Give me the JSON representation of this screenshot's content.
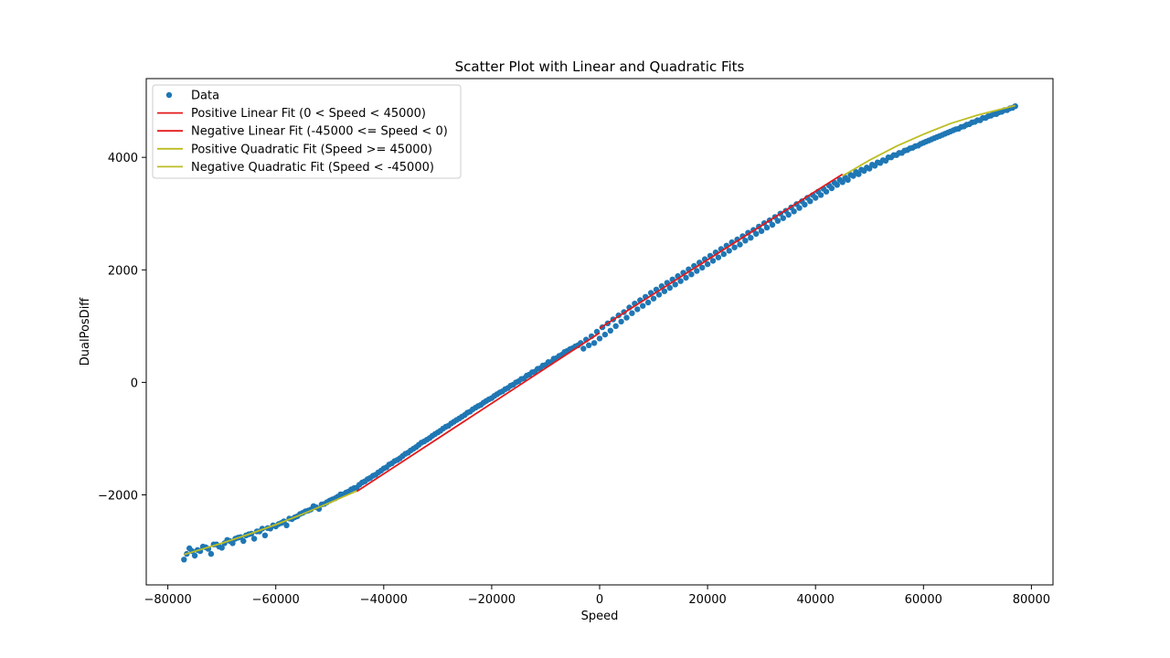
{
  "chart_data": {
    "type": "scatter",
    "title": "Scatter Plot with Linear and Quadratic Fits",
    "xlabel": "Speed",
    "ylabel": "DualPosDiff",
    "xlim": [
      -84000,
      84000
    ],
    "ylim": [
      -3600,
      5400
    ],
    "x_ticks": [
      -80000,
      -60000,
      -40000,
      -20000,
      0,
      20000,
      40000,
      60000,
      80000
    ],
    "x_tick_labels": [
      "−80000",
      "−60000",
      "−40000",
      "−20000",
      "0",
      "20000",
      "40000",
      "60000",
      "80000"
    ],
    "y_ticks": [
      -2000,
      0,
      2000,
      4000
    ],
    "y_tick_labels": [
      "−2000",
      "0",
      "2000",
      "4000"
    ],
    "grid": false,
    "legend_position": "top-left",
    "colors": {
      "data": "#1f77b4",
      "linear_fit": "#e41a1c",
      "quadratic_fit": "#bcbd22"
    },
    "series": [
      {
        "name": "Data",
        "kind": "scatter",
        "color": "#1f77b4",
        "x": [
          -77000,
          -76000,
          -75000,
          -74000,
          -73000,
          -72000,
          -71000,
          -70000,
          -69000,
          -68000,
          -67000,
          -66000,
          -65000,
          -64000,
          -63000,
          -62000,
          -61000,
          -60000,
          -59000,
          -58000,
          -57000,
          -56000,
          -55000,
          -54000,
          -53000,
          -52000,
          -51000,
          -50000,
          -49000,
          -48000,
          -47000,
          -46000,
          -45000,
          -44000,
          -43000,
          -42000,
          -41000,
          -40000,
          -39000,
          -38000,
          -37000,
          -36000,
          -35000,
          -34000,
          -33000,
          -32000,
          -31000,
          -30000,
          -29000,
          -28000,
          -27000,
          -26000,
          -25000,
          -24000,
          -23000,
          -22000,
          -21000,
          -20000,
          -19000,
          -18000,
          -17000,
          -16000,
          -15000,
          -14000,
          -13000,
          -12000,
          -11000,
          -10000,
          -9000,
          -8000,
          -7000,
          -6000,
          -5000,
          -4000,
          -3000,
          -2000,
          -1000,
          0,
          1000,
          2000,
          3000,
          4000,
          5000,
          6000,
          7000,
          8000,
          9000,
          10000,
          11000,
          12000,
          13000,
          14000,
          15000,
          16000,
          17000,
          18000,
          19000,
          20000,
          21000,
          22000,
          23000,
          24000,
          25000,
          26000,
          27000,
          28000,
          29000,
          30000,
          31000,
          32000,
          33000,
          34000,
          35000,
          36000,
          37000,
          38000,
          39000,
          40000,
          41000,
          42000,
          43000,
          44000,
          45000,
          46000,
          47000,
          48000,
          49000,
          50000,
          51000,
          52000,
          53000,
          54000,
          55000,
          56000,
          57000,
          58000,
          59000,
          60000,
          61000,
          62000,
          63000,
          64000,
          65000,
          66000,
          67000,
          68000,
          69000,
          70000,
          71000,
          72000,
          73000,
          74000,
          75000,
          76000,
          77000,
          -76500,
          -75500,
          -74500,
          -73500,
          -72500,
          -71500,
          -70500,
          -69500,
          -68500,
          -67500,
          -66500,
          -65500,
          -64500,
          -63500,
          -62500,
          -61500,
          -60500,
          -59500,
          -58500,
          -57500,
          -56500,
          -55500,
          -54500,
          -53500,
          -52500,
          -51500,
          -50500,
          -49500,
          -48500,
          -47500,
          -46500,
          -45500,
          -44500,
          -43500,
          -42500,
          -41500,
          -40500,
          -39500,
          -38500,
          -37500,
          -36500,
          -35500,
          -34500,
          -33500,
          -32500,
          -31500,
          -30500,
          -29500,
          -28500,
          -27500,
          -26500,
          -25500,
          -24500,
          -23500,
          -22500,
          -21500,
          -20500,
          -19500,
          -18500,
          -17500,
          -16500,
          -15500,
          -14500,
          -13500,
          -12500,
          -11500,
          -10500,
          -9500,
          -8500,
          -7500,
          -6500,
          -5500,
          -4500,
          -3500,
          -2500,
          -1500,
          -500,
          500,
          1500,
          2500,
          3500,
          4500,
          5500,
          6500,
          7500,
          8500,
          9500,
          10500,
          11500,
          12500,
          13500,
          14500,
          15500,
          16500,
          17500,
          18500,
          19500,
          20500,
          21500,
          22500,
          23500,
          24500,
          25500,
          26500,
          27500,
          28500,
          29500,
          30500,
          31500,
          32500,
          33500,
          34500,
          35500,
          36500,
          37500,
          38500,
          39500,
          40500,
          41500,
          42500,
          43500,
          44500,
          45500,
          46500,
          47500,
          48500,
          49500,
          50500,
          51500,
          52500,
          53500,
          54500,
          55500,
          56500,
          57500,
          58500,
          59500,
          60500,
          61500,
          62500,
          63500,
          64500,
          65500,
          66500,
          67500,
          68500,
          69500,
          70500,
          71500,
          72500,
          73500,
          74500,
          75500,
          76500
        ],
        "y": [
          -3150,
          -2950,
          -3080,
          -3000,
          -2930,
          -3050,
          -2880,
          -2940,
          -2800,
          -2860,
          -2760,
          -2820,
          -2700,
          -2780,
          -2650,
          -2720,
          -2600,
          -2560,
          -2500,
          -2540,
          -2430,
          -2380,
          -2320,
          -2280,
          -2200,
          -2250,
          -2160,
          -2100,
          -2060,
          -1990,
          -1960,
          -1900,
          -1870,
          -1780,
          -1720,
          -1660,
          -1600,
          -1530,
          -1460,
          -1400,
          -1350,
          -1270,
          -1210,
          -1150,
          -1070,
          -1020,
          -950,
          -890,
          -820,
          -770,
          -700,
          -640,
          -580,
          -520,
          -450,
          -400,
          -330,
          -280,
          -210,
          -160,
          -100,
          -40,
          20,
          70,
          140,
          190,
          250,
          310,
          360,
          430,
          490,
          560,
          610,
          660,
          600,
          660,
          700,
          780,
          850,
          920,
          1000,
          1080,
          1150,
          1230,
          1300,
          1360,
          1420,
          1490,
          1560,
          1620,
          1680,
          1740,
          1800,
          1860,
          1920,
          1980,
          2040,
          2100,
          2160,
          2220,
          2280,
          2340,
          2400,
          2450,
          2520,
          2570,
          2640,
          2690,
          2750,
          2800,
          2870,
          2920,
          2980,
          3040,
          3100,
          3160,
          3220,
          3280,
          3330,
          3390,
          3450,
          3510,
          3560,
          3600,
          3670,
          3700,
          3760,
          3800,
          3850,
          3900,
          3940,
          4000,
          4040,
          4080,
          4130,
          4170,
          4210,
          4260,
          4300,
          4340,
          4380,
          4420,
          4460,
          4500,
          4540,
          4580,
          4620,
          4660,
          4700,
          4730,
          4770,
          4800,
          4840,
          4870,
          4910,
          -3050,
          -3000,
          -2980,
          -2920,
          -2960,
          -2880,
          -2920,
          -2860,
          -2820,
          -2780,
          -2750,
          -2720,
          -2690,
          -2650,
          -2600,
          -2590,
          -2540,
          -2520,
          -2470,
          -2420,
          -2400,
          -2340,
          -2290,
          -2260,
          -2220,
          -2170,
          -2130,
          -2080,
          -2030,
          -1990,
          -1940,
          -1880,
          -1820,
          -1760,
          -1700,
          -1640,
          -1570,
          -1510,
          -1440,
          -1380,
          -1310,
          -1250,
          -1180,
          -1110,
          -1050,
          -990,
          -920,
          -860,
          -790,
          -730,
          -670,
          -610,
          -540,
          -480,
          -420,
          -360,
          -300,
          -240,
          -180,
          -120,
          -60,
          0,
          60,
          120,
          180,
          240,
          300,
          360,
          420,
          470,
          540,
          590,
          640,
          700,
          760,
          820,
          900,
          980,
          1050,
          1120,
          1190,
          1250,
          1330,
          1400,
          1460,
          1520,
          1590,
          1650,
          1710,
          1770,
          1830,
          1890,
          1950,
          2010,
          2070,
          2130,
          2190,
          2250,
          2310,
          2370,
          2430,
          2490,
          2540,
          2600,
          2660,
          2710,
          2770,
          2830,
          2880,
          2940,
          3000,
          3050,
          3110,
          3170,
          3220,
          3280,
          3330,
          3390,
          3440,
          3500,
          3550,
          3600,
          3640,
          3690,
          3740,
          3780,
          3820,
          3870,
          3910,
          3950,
          4000,
          4040,
          4080,
          4120,
          4160,
          4200,
          4240,
          4280,
          4320,
          4360,
          4400,
          4440,
          4480,
          4510,
          4550,
          4590,
          4630,
          4660,
          4700,
          4740,
          4770,
          4810,
          4840,
          4880
        ]
      },
      {
        "name": "Positive Linear Fit (0 < Speed < 45000)",
        "kind": "line",
        "color": "#e41a1c",
        "x": [
          0,
          45000
        ],
        "y": [
          960,
          3700
        ]
      },
      {
        "name": "Negative Linear Fit (-45000 <= Speed < 0)",
        "kind": "line",
        "color": "#e41a1c",
        "x": [
          -45000,
          0
        ],
        "y": [
          -1940,
          880
        ]
      },
      {
        "name": "Positive Quadratic Fit (Speed >= 45000)",
        "kind": "line",
        "color": "#bcbd22",
        "x": [
          45000,
          50000,
          55000,
          60000,
          65000,
          70000,
          77000
        ],
        "y": [
          3670,
          3950,
          4200,
          4410,
          4600,
          4750,
          4920
        ]
      },
      {
        "name": "Negative Quadratic Fit (Speed < -45000)",
        "kind": "line",
        "color": "#bcbd22",
        "x": [
          -77000,
          -70000,
          -65000,
          -60000,
          -55000,
          -50000,
          -45000
        ],
        "y": [
          -3060,
          -2860,
          -2700,
          -2530,
          -2340,
          -2140,
          -1930
        ]
      }
    ]
  }
}
